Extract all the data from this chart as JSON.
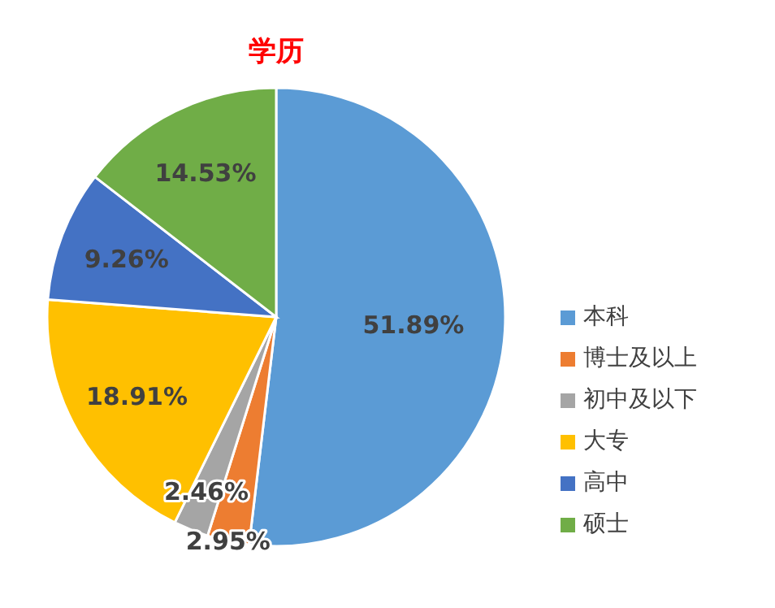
{
  "chart_data": {
    "type": "pie",
    "title": "学历",
    "categories": [
      "本科",
      "博士及以上",
      "初中及以下",
      "大专",
      "高中",
      "硕士"
    ],
    "values": [
      51.89,
      2.95,
      2.46,
      18.91,
      9.26,
      14.53
    ],
    "colors": [
      "#5b9bd5",
      "#ed7d31",
      "#a5a5a5",
      "#ffc000",
      "#4472c4",
      "#70ad47"
    ],
    "value_labels": [
      "51.89%",
      "2.95%",
      "2.46%",
      "18.91%",
      "9.26%",
      "14.53%"
    ],
    "legend": "right"
  }
}
